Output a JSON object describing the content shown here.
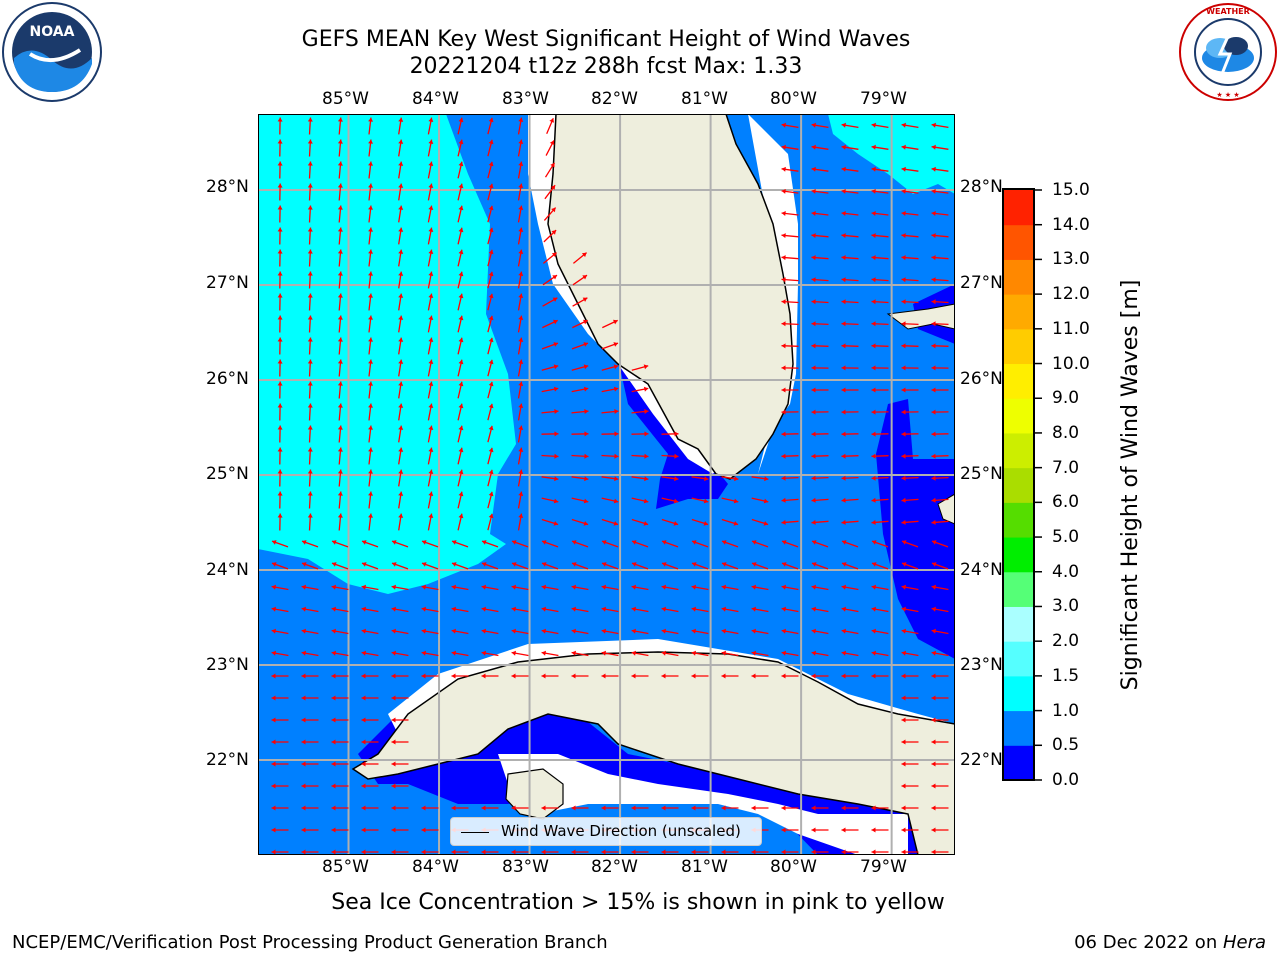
{
  "title": {
    "line1": "GEFS MEAN Key West Significant Height of Wind Waves",
    "line2": "20221204 t12z 288h fcst   Max: 1.33"
  },
  "map": {
    "lon_labels": [
      "85°W",
      "84°W",
      "83°W",
      "82°W",
      "81°W",
      "80°W",
      "79°W"
    ],
    "lat_labels": [
      "28°N",
      "27°N",
      "26°N",
      "25°N",
      "24°N",
      "23°N",
      "22°N"
    ],
    "extent": {
      "lon_min": -86.0,
      "lon_max": -78.3,
      "lat_min": 21.0,
      "lat_max": 28.8
    },
    "colors": {
      "land": "#eeeedd",
      "cyan": "#00ffff",
      "mid_blue": "#0080ff",
      "deep_blue": "#0000ff",
      "arrow": "#ff0000",
      "grid": "#b0b0b0"
    },
    "legend_label": "Wind Wave Direction (unscaled)"
  },
  "colorbar": {
    "label": "Significant Height of Wind Waves [m]",
    "ticks": [
      "15.0",
      "14.0",
      "13.0",
      "12.0",
      "11.0",
      "10.0",
      "9.0",
      "8.0",
      "7.0",
      "6.0",
      "5.0",
      "4.0",
      "3.0",
      "2.0",
      "1.5",
      "1.0",
      "0.5",
      "0.0"
    ],
    "colors_bottom_to_top": [
      "#0000ff",
      "#0080ff",
      "#00ffff",
      "#55ffff",
      "#aaffff",
      "#55ff77",
      "#00ee00",
      "#55dd00",
      "#aadd00",
      "#ccee00",
      "#eeff00",
      "#ffee00",
      "#ffcc00",
      "#ffaa00",
      "#ff8800",
      "#ff5500",
      "#ff2200"
    ]
  },
  "logos": {
    "noaa": "NOAA",
    "nws": "NATIONAL WEATHER SERVICE"
  },
  "note": "Sea Ice Concentration > 15% is shown in pink to yellow",
  "footer": {
    "left": "NCEP/EMC/Verification Post Processing Product Generation Branch",
    "right_prefix": "06 Dec 2022 on ",
    "right_host": "Hera"
  }
}
